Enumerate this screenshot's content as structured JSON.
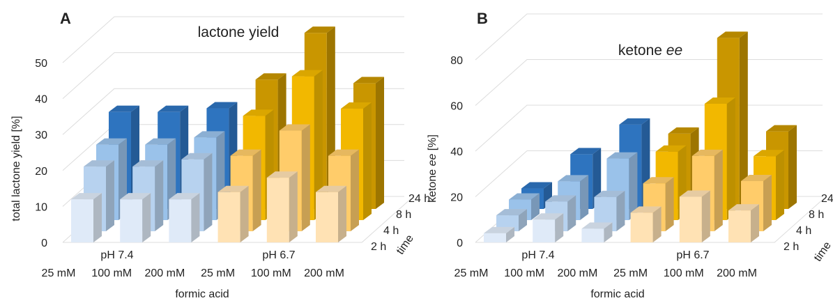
{
  "chart_data": [
    {
      "type": "bar",
      "panel_label": "A",
      "title": "lactone yield",
      "ylabel": "total lactone yield [%]",
      "xlabel": "formic acid",
      "depth_label": "time",
      "ylim": [
        0,
        50
      ],
      "yticks": [
        0,
        10,
        20,
        30,
        40,
        50
      ],
      "grid": true,
      "categories": [
        "25 mM",
        "100 mM",
        "200 mM",
        "25 mM",
        "100 mM",
        "200 mM"
      ],
      "groups": [
        {
          "label": "pH 7.4",
          "categories": [
            "25 mM",
            "100 mM",
            "200 mM"
          ]
        },
        {
          "label": "pH 6.7",
          "categories": [
            "25 mM",
            "100 mM",
            "200 mM"
          ]
        }
      ],
      "series": [
        {
          "name": "2 h",
          "values": [
            12,
            12,
            12,
            14,
            18,
            14
          ]
        },
        {
          "name": "4 h",
          "values": [
            18,
            18,
            20,
            21,
            28,
            21
          ]
        },
        {
          "name": "8 h",
          "values": [
            21,
            21,
            23,
            29,
            40,
            31
          ]
        },
        {
          "name": "24 h",
          "values": [
            27,
            27,
            28,
            36,
            49,
            35
          ]
        }
      ]
    },
    {
      "type": "bar",
      "panel_label": "B",
      "title_prefix": "ketone",
      "title_italic": "ee",
      "ylabel_prefix": "ketone",
      "ylabel_italic": "ee",
      "ylabel_suffix": "[%]",
      "xlabel": "formic acid",
      "depth_label": "time",
      "ylim": [
        0,
        80
      ],
      "yticks": [
        0,
        20,
        40,
        60,
        80
      ],
      "grid": true,
      "categories": [
        "25 mM",
        "100 mM",
        "200 mM",
        "25 mM",
        "100 mM",
        "200 mM"
      ],
      "groups": [
        {
          "label": "pH 7.4",
          "categories": [
            "25 mM",
            "100 mM",
            "200 mM"
          ]
        },
        {
          "label": "pH 6.7",
          "categories": [
            "25 mM",
            "100 mM",
            "200 mM"
          ]
        }
      ],
      "series": [
        {
          "name": "2 h",
          "values": [
            4,
            10,
            6,
            13,
            20,
            14
          ]
        },
        {
          "name": "4 h",
          "values": [
            7,
            13,
            15,
            21,
            33,
            22
          ]
        },
        {
          "name": "8 h",
          "values": [
            9,
            17,
            27,
            30,
            51,
            28
          ]
        },
        {
          "name": "24 h",
          "values": [
            9,
            24,
            37,
            33,
            75,
            34
          ]
        }
      ]
    }
  ],
  "colors": {
    "blue": [
      "#dfeaf8",
      "#b7d2ef",
      "#9ac2ea",
      "#2e74bf"
    ],
    "orange": [
      "#ffe2b4",
      "#ffcc6a",
      "#f2b800",
      "#c99600"
    ],
    "grid": "#dcdcdc"
  }
}
